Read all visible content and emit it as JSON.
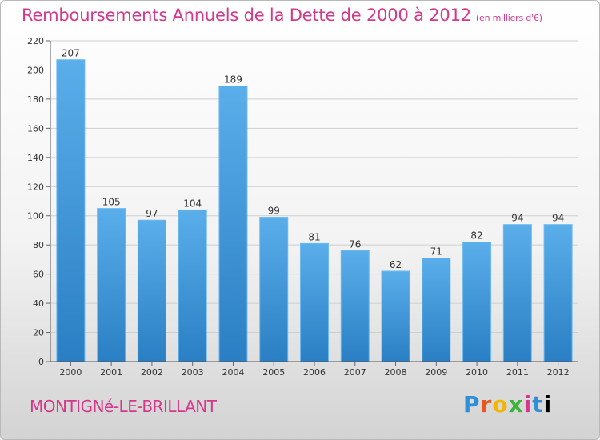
{
  "chart_data": {
    "type": "bar",
    "title": "Remboursements Annuels de la Dette de 2000 à 2012",
    "unit_note": "(en milliers d'€)",
    "categories": [
      "2000",
      "2001",
      "2002",
      "2003",
      "2004",
      "2005",
      "2006",
      "2007",
      "2008",
      "2009",
      "2010",
      "2011",
      "2012"
    ],
    "values": [
      207,
      105,
      97,
      104,
      189,
      99,
      81,
      76,
      62,
      71,
      82,
      94,
      94
    ],
    "ylim": [
      0,
      220
    ],
    "yticks": [
      0,
      20,
      40,
      60,
      80,
      100,
      120,
      140,
      160,
      180,
      200,
      220
    ],
    "grid": true,
    "bar_color": "#4a9fe0"
  },
  "footer": {
    "city": "MONTIGNé-LE-BRILLANT",
    "logo_letters": [
      "P",
      "r",
      "o",
      "x",
      "i",
      "t",
      "i"
    ]
  }
}
